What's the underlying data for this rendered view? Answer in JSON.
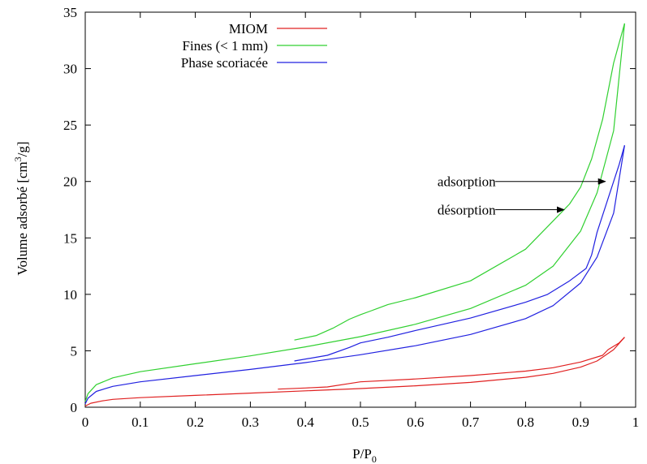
{
  "chart_data": {
    "type": "line",
    "xlabel": "P/P",
    "xlabel_sub": "0",
    "ylabel": "Volume adsorbé [cm",
    "ylabel_sup": "3",
    "ylabel_end": "/g]",
    "xlim": [
      0,
      1
    ],
    "ylim": [
      0,
      35
    ],
    "xticks": [
      {
        "value": 0,
        "label": "0"
      },
      {
        "value": 0.1,
        "label": "0.1"
      },
      {
        "value": 0.2,
        "label": "0.2"
      },
      {
        "value": 0.3,
        "label": "0.3"
      },
      {
        "value": 0.4,
        "label": "0.4"
      },
      {
        "value": 0.5,
        "label": "0.5"
      },
      {
        "value": 0.6,
        "label": "0.6"
      },
      {
        "value": 0.7,
        "label": "0.7"
      },
      {
        "value": 0.8,
        "label": "0.8"
      },
      {
        "value": 0.9,
        "label": "0.9"
      },
      {
        "value": 1,
        "label": "1"
      }
    ],
    "yticks": [
      {
        "value": 0,
        "label": "0"
      },
      {
        "value": 5,
        "label": "5"
      },
      {
        "value": 10,
        "label": "10"
      },
      {
        "value": 15,
        "label": "15"
      },
      {
        "value": 20,
        "label": "20"
      },
      {
        "value": 25,
        "label": "25"
      },
      {
        "value": 30,
        "label": "30"
      },
      {
        "value": 35,
        "label": "35"
      }
    ],
    "grid": false,
    "legend_position": "top-left",
    "series": [
      {
        "name": "MIOM",
        "color": "#e02020",
        "adsorption": [
          [
            0,
            0.1
          ],
          [
            0.01,
            0.35
          ],
          [
            0.03,
            0.55
          ],
          [
            0.05,
            0.7
          ],
          [
            0.1,
            0.85
          ],
          [
            0.2,
            1.05
          ],
          [
            0.3,
            1.25
          ],
          [
            0.4,
            1.45
          ],
          [
            0.5,
            1.65
          ],
          [
            0.6,
            1.9
          ],
          [
            0.7,
            2.2
          ],
          [
            0.8,
            2.65
          ],
          [
            0.85,
            3.0
          ],
          [
            0.9,
            3.55
          ],
          [
            0.93,
            4.1
          ],
          [
            0.96,
            5.1
          ],
          [
            0.98,
            6.2
          ]
        ],
        "desorption": [
          [
            0.98,
            6.2
          ],
          [
            0.97,
            5.7
          ],
          [
            0.95,
            5.1
          ],
          [
            0.94,
            4.6
          ],
          [
            0.9,
            4.0
          ],
          [
            0.85,
            3.5
          ],
          [
            0.8,
            3.2
          ],
          [
            0.7,
            2.8
          ],
          [
            0.6,
            2.5
          ],
          [
            0.5,
            2.25
          ],
          [
            0.48,
            2.1
          ],
          [
            0.44,
            1.8
          ],
          [
            0.4,
            1.7
          ],
          [
            0.35,
            1.6
          ]
        ]
      },
      {
        "name": "Fines (< 1 mm)",
        "color": "#30d030",
        "adsorption": [
          [
            0,
            0.5
          ],
          [
            0.005,
            1.2
          ],
          [
            0.02,
            2.0
          ],
          [
            0.05,
            2.6
          ],
          [
            0.1,
            3.15
          ],
          [
            0.2,
            3.85
          ],
          [
            0.3,
            4.55
          ],
          [
            0.4,
            5.35
          ],
          [
            0.5,
            6.25
          ],
          [
            0.6,
            7.35
          ],
          [
            0.7,
            8.75
          ],
          [
            0.8,
            10.8
          ],
          [
            0.85,
            12.5
          ],
          [
            0.9,
            15.6
          ],
          [
            0.93,
            19.0
          ],
          [
            0.96,
            24.5
          ],
          [
            0.98,
            34.0
          ]
        ],
        "desorption": [
          [
            0.98,
            34.0
          ],
          [
            0.96,
            30.5
          ],
          [
            0.94,
            25.5
          ],
          [
            0.92,
            22.0
          ],
          [
            0.9,
            19.5
          ],
          [
            0.88,
            18.0
          ],
          [
            0.85,
            16.5
          ],
          [
            0.8,
            14.0
          ],
          [
            0.7,
            11.2
          ],
          [
            0.6,
            9.7
          ],
          [
            0.55,
            9.1
          ],
          [
            0.52,
            8.55
          ],
          [
            0.5,
            8.2
          ],
          [
            0.48,
            7.8
          ],
          [
            0.45,
            7.0
          ],
          [
            0.42,
            6.35
          ],
          [
            0.38,
            5.95
          ]
        ]
      },
      {
        "name": "Phase scoriacée",
        "color": "#2020e0",
        "adsorption": [
          [
            0,
            0.3
          ],
          [
            0.005,
            0.8
          ],
          [
            0.02,
            1.4
          ],
          [
            0.05,
            1.85
          ],
          [
            0.1,
            2.25
          ],
          [
            0.2,
            2.8
          ],
          [
            0.3,
            3.35
          ],
          [
            0.4,
            3.95
          ],
          [
            0.5,
            4.65
          ],
          [
            0.6,
            5.45
          ],
          [
            0.7,
            6.45
          ],
          [
            0.8,
            7.85
          ],
          [
            0.85,
            9.0
          ],
          [
            0.9,
            11.0
          ],
          [
            0.93,
            13.3
          ],
          [
            0.96,
            17.2
          ],
          [
            0.98,
            23.2
          ]
        ],
        "desorption": [
          [
            0.98,
            23.2
          ],
          [
            0.97,
            21.5
          ],
          [
            0.95,
            18.5
          ],
          [
            0.93,
            15.5
          ],
          [
            0.92,
            13.5
          ],
          [
            0.91,
            12.3
          ],
          [
            0.88,
            11.2
          ],
          [
            0.84,
            10.0
          ],
          [
            0.8,
            9.3
          ],
          [
            0.7,
            7.9
          ],
          [
            0.6,
            6.8
          ],
          [
            0.55,
            6.2
          ],
          [
            0.5,
            5.7
          ],
          [
            0.48,
            5.3
          ],
          [
            0.44,
            4.6
          ],
          [
            0.38,
            4.1
          ]
        ]
      }
    ],
    "annotations": [
      {
        "text": "adsorption",
        "x_text": 0.64,
        "y_text": 20.0,
        "arrow_from": [
          0.745,
          20.0
        ],
        "arrow_to": [
          0.945,
          20.0
        ]
      },
      {
        "text": "désorption",
        "x_text": 0.64,
        "y_text": 17.5,
        "arrow_from": [
          0.745,
          17.5
        ],
        "arrow_to": [
          0.87,
          17.5
        ]
      }
    ]
  }
}
